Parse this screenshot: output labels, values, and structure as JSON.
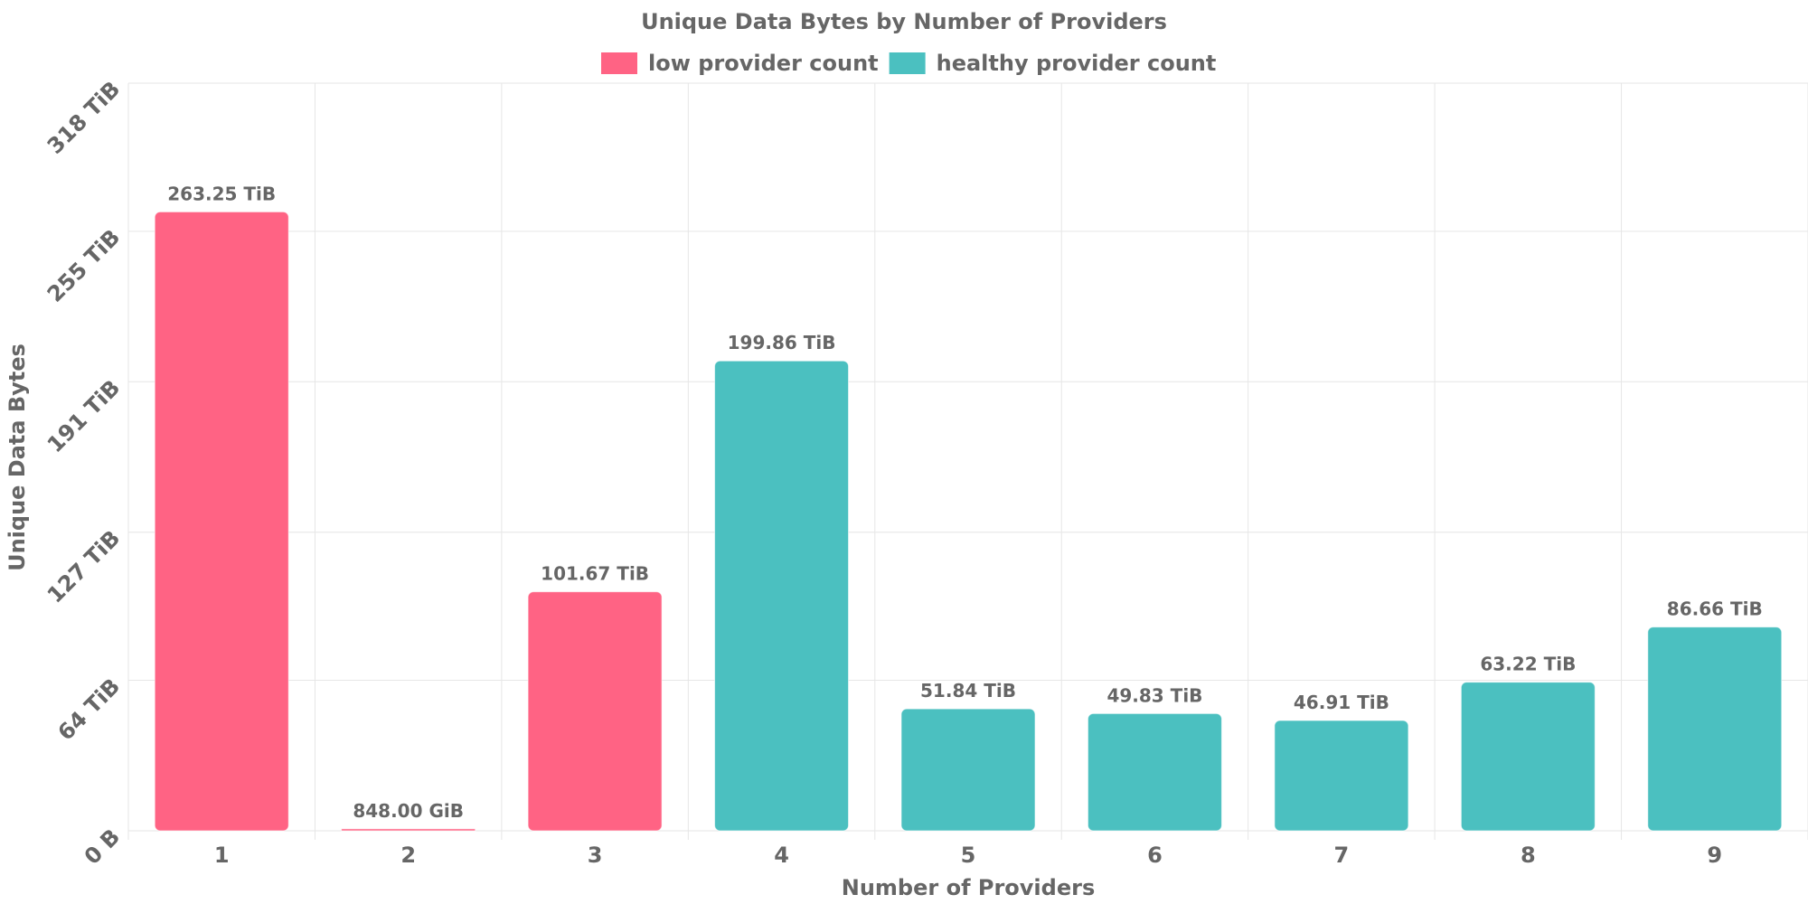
{
  "chart_data": {
    "type": "bar",
    "title": "Unique Data Bytes by Number of Providers",
    "xlabel": "Number of Providers",
    "ylabel": "Unique Data Bytes",
    "unit": "TiB",
    "categories": [
      "1",
      "2",
      "3",
      "4",
      "5",
      "6",
      "7",
      "8",
      "9"
    ],
    "values": [
      263.25,
      0.828125,
      101.67,
      199.86,
      51.84,
      49.83,
      46.91,
      63.22,
      86.66
    ],
    "labels": [
      "263.25 TiB",
      "848.00 GiB",
      "101.67 TiB",
      "199.86 TiB",
      "51.84 TiB",
      "49.83 TiB",
      "46.91 TiB",
      "63.22 TiB",
      "86.66 TiB"
    ],
    "groups": [
      "low",
      "low",
      "low",
      "healthy",
      "healthy",
      "healthy",
      "healthy",
      "healthy",
      "healthy"
    ],
    "legend": [
      {
        "key": "low",
        "label": "low provider count",
        "color": "#ff6384"
      },
      {
        "key": "healthy",
        "label": "healthy provider count",
        "color": "#4bc0c0"
      }
    ],
    "legend_position": "top",
    "ylim": [
      0,
      318
    ],
    "yticks": [
      0,
      64,
      127,
      191,
      255,
      318
    ],
    "ytick_labels": [
      "0 B",
      "64 TiB",
      "127 TiB",
      "191 TiB",
      "255 TiB",
      "318 TiB"
    ],
    "grid": true
  }
}
